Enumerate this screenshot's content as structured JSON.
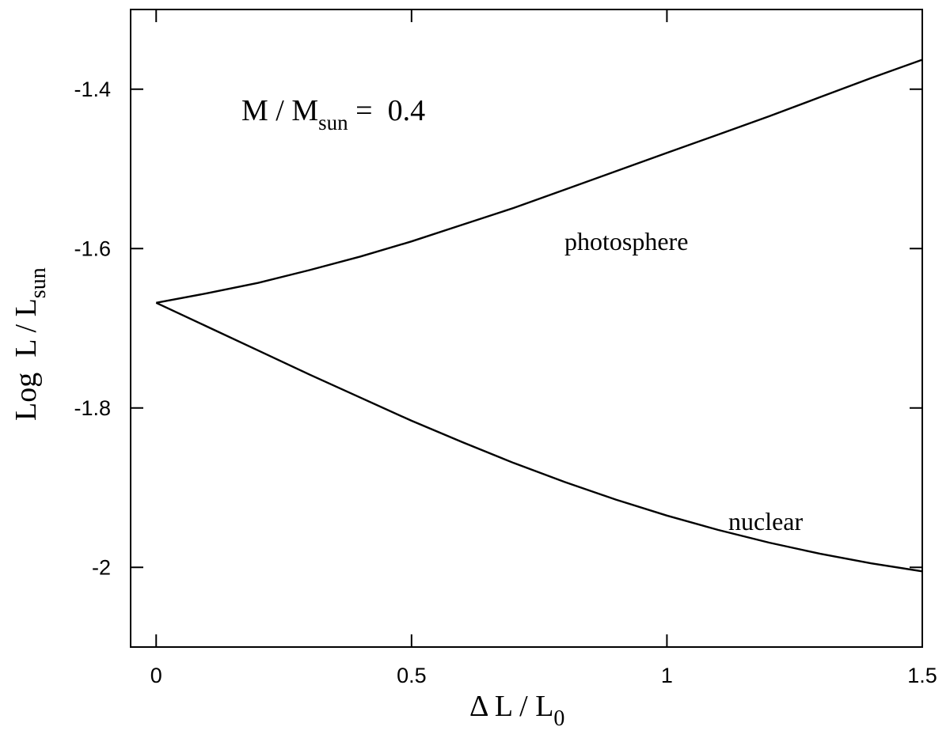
{
  "chart_data": {
    "type": "line",
    "xlabel": {
      "main": "Δ L / L",
      "sub": "0"
    },
    "ylabel": {
      "main": "Log  L / L",
      "sub": "sun"
    },
    "xlim": [
      -0.05,
      1.5
    ],
    "ylim": [
      -2.1,
      -1.3
    ],
    "xticks": [
      0,
      0.5,
      1,
      1.5
    ],
    "xtick_labels": [
      "0",
      "0.5",
      "1",
      "1.5"
    ],
    "yticks": [
      -2,
      -1.8,
      -1.6,
      -1.4
    ],
    "ytick_labels": [
      "-2",
      "-1.8",
      "-1.6",
      "-1.4"
    ],
    "grid": false,
    "annotation": {
      "main": "M / M",
      "sub": "sun",
      "value": " =  0.4"
    },
    "series": [
      {
        "label": "photosphere",
        "x": [
          0,
          0.1,
          0.2,
          0.3,
          0.4,
          0.5,
          0.6,
          0.7,
          0.8,
          0.9,
          1.0,
          1.1,
          1.2,
          1.3,
          1.4,
          1.5
        ],
        "y": [
          -1.668,
          -1.656,
          -1.643,
          -1.627,
          -1.61,
          -1.591,
          -1.57,
          -1.549,
          -1.526,
          -1.503,
          -1.48,
          -1.457,
          -1.434,
          -1.41,
          -1.386,
          -1.363
        ]
      },
      {
        "label": "nuclear",
        "x": [
          0,
          0.1,
          0.2,
          0.3,
          0.4,
          0.5,
          0.6,
          0.7,
          0.8,
          0.9,
          1.0,
          1.1,
          1.2,
          1.3,
          1.4,
          1.5
        ],
        "y": [
          -1.668,
          -1.698,
          -1.728,
          -1.758,
          -1.787,
          -1.816,
          -1.843,
          -1.869,
          -1.893,
          -1.915,
          -1.935,
          -1.953,
          -1.969,
          -1.983,
          -1.995,
          -2.005
        ]
      }
    ]
  }
}
